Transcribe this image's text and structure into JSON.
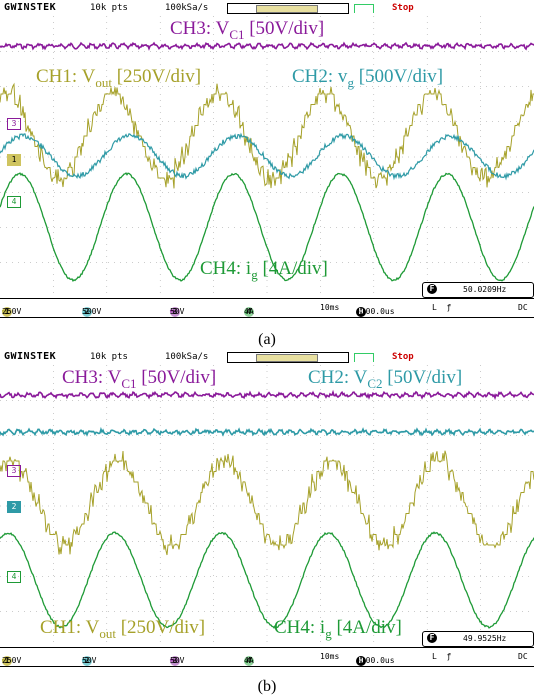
{
  "panels": [
    {
      "caption": "(a)",
      "brand": "GWINSTEK",
      "points": "10k pts",
      "sample_rate": "100kSa/s",
      "status": "Stop",
      "channel_marks": [
        "3",
        "1",
        "4"
      ],
      "labels": {
        "ch3": {
          "pre": "CH3: V",
          "sub": "C1",
          "post": " [50V/div]"
        },
        "ch1": {
          "pre": "CH1: V",
          "sub": "out",
          "post": " [250V/div]"
        },
        "ch2": {
          "pre": "CH2: v",
          "sub": "g",
          "post": " [500V/div]"
        },
        "ch4": {
          "pre": "CH4: i",
          "sub": "g",
          "post": " [4A/div]"
        }
      },
      "frequency": "50.0209Hz",
      "settings": {
        "ch1": "250V",
        "ch2": "500V",
        "ch3": "50V",
        "ch4": "4A",
        "timebase": "10ms",
        "hpos": "-100.0us",
        "coupling": "DC"
      }
    },
    {
      "caption": "(b)",
      "brand": "GWINSTEK",
      "points": "10k pts",
      "sample_rate": "100kSa/s",
      "status": "Stop",
      "channel_marks": [
        "3",
        "2",
        "4"
      ],
      "labels": {
        "ch3": {
          "pre": "CH3: V",
          "sub": "C1",
          "post": " [50V/div]"
        },
        "ch2": {
          "pre": "CH2: V",
          "sub": "C2",
          "post": " [50V/div]"
        },
        "ch1": {
          "pre": "CH1: V",
          "sub": "out",
          "post": " [250V/div]"
        },
        "ch4": {
          "pre": "CH4: i",
          "sub": "g",
          "post": " [4A/div]"
        }
      },
      "frequency": "49.9525Hz",
      "settings": {
        "ch1": "250V",
        "ch2": "50V",
        "ch3": "50V",
        "ch4": "4A",
        "timebase": "10ms",
        "hpos": "-100.0us",
        "coupling": "DC"
      }
    }
  ],
  "colors": {
    "ch1": "#a6a12a",
    "ch2": "#2e9aa6",
    "ch3": "#8a1a9a",
    "ch4": "#1e9a36",
    "grid": "#9a9a9a"
  },
  "chart_data": [
    {
      "type": "line",
      "x_unit": "ms",
      "xlim": [
        0,
        100
      ],
      "time_per_div": "10ms",
      "series": [
        {
          "name": "CH3: VC1",
          "shape": "flat dc trace with small ripple",
          "scale": "50V/div"
        },
        {
          "name": "CH1: Vout",
          "shape": "multilevel staircase sine, ~5 cycles",
          "scale": "250V/div"
        },
        {
          "name": "CH2: vg",
          "shape": "sine, ~5 cycles",
          "scale": "500V/div"
        },
        {
          "name": "CH4: ig",
          "shape": "sine, ~5 cycles",
          "scale": "4A/div"
        }
      ],
      "frequency_hz": 50.0209
    },
    {
      "type": "line",
      "x_unit": "ms",
      "xlim": [
        0,
        100
      ],
      "time_per_div": "10ms",
      "series": [
        {
          "name": "CH3: VC1",
          "shape": "flat dc trace with small ripple",
          "scale": "50V/div"
        },
        {
          "name": "CH2: VC2",
          "shape": "flat dc trace with small ripple",
          "scale": "50V/div"
        },
        {
          "name": "CH1: Vout",
          "shape": "multilevel staircase sine, ~5 cycles",
          "scale": "250V/div"
        },
        {
          "name": "CH4: ig",
          "shape": "sine, ~5 cycles",
          "scale": "4A/div"
        }
      ],
      "frequency_hz": 49.9525
    }
  ]
}
